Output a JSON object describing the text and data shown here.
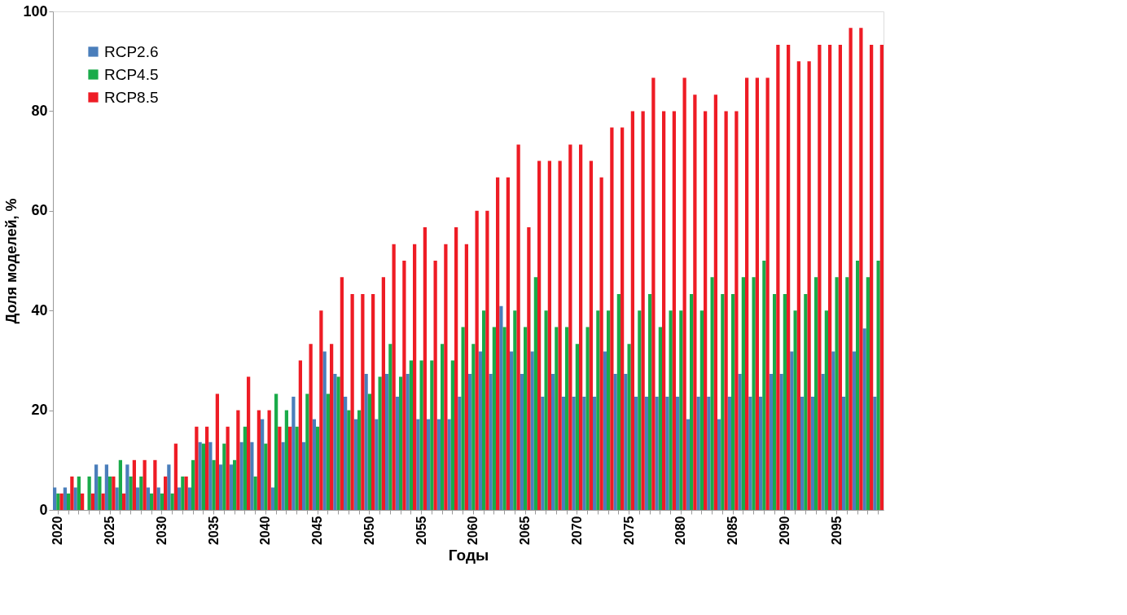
{
  "chart_data": {
    "type": "bar",
    "xlabel": "Годы",
    "ylabel": "Доля моделей, %",
    "categories": [
      "2020",
      null,
      null,
      null,
      null,
      "2025",
      null,
      null,
      null,
      null,
      "2030",
      null,
      null,
      null,
      null,
      "2035",
      null,
      null,
      null,
      null,
      "2040",
      null,
      null,
      null,
      null,
      "2045",
      null,
      null,
      null,
      null,
      "2050",
      null,
      null,
      null,
      null,
      "2055",
      null,
      null,
      null,
      null,
      "2060",
      null,
      null,
      null,
      null,
      "2065",
      null,
      null,
      null,
      null,
      "2070",
      null,
      null,
      null,
      null,
      "2075",
      null,
      null,
      null,
      null,
      "2080",
      null,
      null,
      null,
      null,
      "2085",
      null,
      null,
      null,
      null,
      "2090",
      null,
      null,
      null,
      null,
      "2095",
      null,
      null,
      null,
      null
    ],
    "series": [
      {
        "name": "RCP2.6",
        "color": "#4a7ebb",
        "values": [
          4.5,
          4.5,
          4.5,
          0,
          9.1,
          9.1,
          4.5,
          9.1,
          4.5,
          4.5,
          4.5,
          9.1,
          4.5,
          4.5,
          13.6,
          13.6,
          9.1,
          9.1,
          13.6,
          13.6,
          18.2,
          4.5,
          13.6,
          22.7,
          13.6,
          18.2,
          31.8,
          27.3,
          22.7,
          18.2,
          27.3,
          18.2,
          27.3,
          22.7,
          27.3,
          18.2,
          18.2,
          18.2,
          18.2,
          22.7,
          27.3,
          31.8,
          27.3,
          40.9,
          31.8,
          27.3,
          31.8,
          22.7,
          27.3,
          22.7,
          22.7,
          22.7,
          22.7,
          31.8,
          27.3,
          27.3,
          22.7,
          22.7,
          22.7,
          22.7,
          22.7,
          18.2,
          22.7,
          22.7,
          18.2,
          22.7,
          27.3,
          22.7,
          22.7,
          27.3,
          27.3,
          31.8,
          22.7,
          22.7,
          27.3,
          31.8,
          22.7,
          31.8,
          36.4,
          22.7
        ]
      },
      {
        "name": "RCP4.5",
        "color": "#1aab4a",
        "values": [
          3.3,
          3.3,
          6.7,
          6.7,
          6.7,
          6.7,
          10,
          6.7,
          6.7,
          3.3,
          3.3,
          3.3,
          6.7,
          10,
          13.3,
          10,
          13.3,
          10,
          16.7,
          6.7,
          13.3,
          23.3,
          20,
          16.7,
          23.3,
          16.7,
          23.3,
          26.7,
          20,
          20,
          23.3,
          26.7,
          33.3,
          26.7,
          30,
          30,
          30,
          33.3,
          30,
          36.7,
          33.3,
          40,
          36.7,
          36.7,
          40,
          36.7,
          46.7,
          40,
          36.7,
          36.7,
          33.3,
          36.7,
          40,
          40,
          43.3,
          33.3,
          40,
          43.3,
          36.7,
          40,
          40,
          43.3,
          40,
          46.7,
          43.3,
          43.3,
          46.7,
          46.7,
          50,
          43.3,
          43.3,
          40,
          43.3,
          46.7,
          40,
          46.7,
          46.7,
          50,
          46.7,
          50
        ]
      },
      {
        "name": "RCP8.5",
        "color": "#ee1c25",
        "values": [
          3.3,
          6.7,
          3.3,
          3.3,
          3.3,
          6.7,
          3.3,
          10,
          10,
          10,
          6.7,
          13.3,
          6.7,
          16.7,
          16.7,
          23.3,
          16.7,
          20,
          26.7,
          20,
          20,
          16.7,
          16.7,
          30,
          33.3,
          40,
          33.3,
          46.7,
          43.3,
          43.3,
          43.3,
          46.7,
          53.3,
          50,
          53.3,
          56.7,
          50,
          53.3,
          56.7,
          53.3,
          60,
          60,
          66.7,
          66.7,
          73.3,
          56.7,
          70,
          70,
          70,
          73.3,
          73.3,
          70,
          66.7,
          76.7,
          76.7,
          80,
          80,
          86.7,
          80,
          80,
          86.7,
          83.3,
          80,
          83.3,
          80,
          80,
          86.7,
          86.7,
          86.7,
          93.3,
          93.3,
          90,
          90,
          93.3,
          93.3,
          93.3,
          96.7,
          96.7,
          93.3,
          93.3
        ]
      }
    ],
    "ylim": [
      0,
      100
    ],
    "yticks": [
      0,
      20,
      40,
      60,
      80,
      100
    ],
    "grid": false,
    "legend": "top left"
  }
}
